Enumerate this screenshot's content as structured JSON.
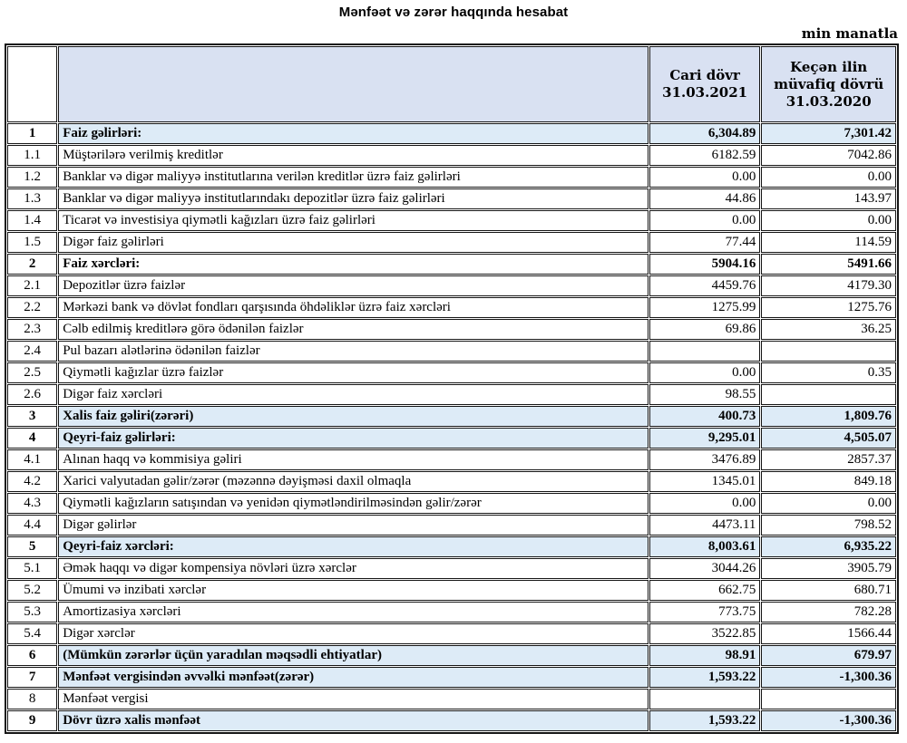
{
  "title": "Mənfəət və zərər haqqında hesabat",
  "unit_note": "min manatla",
  "colors": {
    "header_fill": "#d9e1f2",
    "highlight_fill": "#ddebf7",
    "border": "#161616"
  },
  "table": {
    "header": {
      "num": "",
      "description": "",
      "current": [
        "Cari dövr",
        "31.03.2021"
      ],
      "previous": [
        "Keçən ilin",
        "müvafiq dövrü",
        "31.03.2020"
      ]
    },
    "rows": [
      {
        "num": "1",
        "label": "Faiz gəlirləri:",
        "current": "6,304.89",
        "previous": "7,301.42",
        "highlight": true,
        "bold": true
      },
      {
        "num": "1.1",
        "label": "Müştərilərə verilmiş kreditlər",
        "current": "6182.59",
        "previous": "7042.86",
        "highlight": false,
        "bold": false
      },
      {
        "num": "1.2",
        "label": "Banklar və digər maliyyə institutlarına verilən kreditlər üzrə faiz gəlirləri",
        "current": "0.00",
        "previous": "0.00",
        "highlight": false,
        "bold": false
      },
      {
        "num": "1.3",
        "label": "Banklar və digər maliyyə institutlarındakı depozitlər üzrə faiz gəlirləri",
        "current": "44.86",
        "previous": "143.97",
        "highlight": false,
        "bold": false
      },
      {
        "num": "1.4",
        "label": "Ticarət və investisiya qiymətli kağızları üzrə faiz gəlirləri",
        "current": "0.00",
        "previous": "0.00",
        "highlight": false,
        "bold": false
      },
      {
        "num": "1.5",
        "label": "Digər faiz gəlirləri",
        "current": "77.44",
        "previous": "114.59",
        "highlight": false,
        "bold": false
      },
      {
        "num": "2",
        "label": "Faiz xərcləri:",
        "current": "5904.16",
        "previous": "5491.66",
        "highlight": false,
        "bold": true
      },
      {
        "num": "2.1",
        "label": "Depozitlər üzrə faizlər",
        "current": "4459.76",
        "previous": "4179.30",
        "highlight": false,
        "bold": false
      },
      {
        "num": "2.2",
        "label": "Mərkəzi bank və dövlət fondları qarşısında öhdəliklər üzrə faiz xərcləri",
        "current": "1275.99",
        "previous": "1275.76",
        "highlight": false,
        "bold": false
      },
      {
        "num": "2.3",
        "label": "Cəlb edilmiş kreditlərə görə ödənilən faizlər",
        "current": "69.86",
        "previous": "36.25",
        "highlight": false,
        "bold": false
      },
      {
        "num": "2.4",
        "label": "Pul bazarı alətlərinə ödənilən faizlər",
        "current": "",
        "previous": "",
        "highlight": false,
        "bold": false
      },
      {
        "num": "2.5",
        "label": "Qiymətli kağızlar üzrə faizlər",
        "current": "0.00",
        "previous": "0.35",
        "highlight": false,
        "bold": false
      },
      {
        "num": "2.6",
        "label": "Digər faiz xərcləri",
        "current": "98.55",
        "previous": "",
        "highlight": false,
        "bold": false
      },
      {
        "num": "3",
        "label": "Xalis faiz gəliri(zərəri)",
        "current": "400.73",
        "previous": "1,809.76",
        "highlight": true,
        "bold": true
      },
      {
        "num": "4",
        "label": "Qeyri-faiz gəlirləri:",
        "current": "9,295.01",
        "previous": "4,505.07",
        "highlight": true,
        "bold": true
      },
      {
        "num": "4.1",
        "label": "Alınan haqq və kommisiya gəliri",
        "current": "3476.89",
        "previous": "2857.37",
        "highlight": false,
        "bold": false
      },
      {
        "num": "4.2",
        "label": "Xarici valyutadan gəlir/zərər (məzənnə dəyişməsi daxil olmaqla",
        "current": "1345.01",
        "previous": "849.18",
        "highlight": false,
        "bold": false
      },
      {
        "num": "4.3",
        "label": "Qiymətli kağızların satışından və yenidən qiymətləndirilməsindən gəlir/zərər",
        "current": "0.00",
        "previous": "0.00",
        "highlight": false,
        "bold": false
      },
      {
        "num": "4.4",
        "label": "Digər gəlirlər",
        "current": "4473.11",
        "previous": "798.52",
        "highlight": false,
        "bold": false
      },
      {
        "num": "5",
        "label": "Qeyri-faiz xərcləri:",
        "current": "8,003.61",
        "previous": "6,935.22",
        "highlight": true,
        "bold": true
      },
      {
        "num": "5.1",
        "label": "Əmək haqqı və digər kompensiya növləri üzrə xərclər",
        "current": "3044.26",
        "previous": "3905.79",
        "highlight": false,
        "bold": false
      },
      {
        "num": "5.2",
        "label": "Ümumi və inzibati xərclər",
        "current": "662.75",
        "previous": "680.71",
        "highlight": false,
        "bold": false
      },
      {
        "num": "5.3",
        "label": "Amortizasiya xərcləri",
        "current": "773.75",
        "previous": "782.28",
        "highlight": false,
        "bold": false
      },
      {
        "num": "5.4",
        "label": "Digər xərclər",
        "current": "3522.85",
        "previous": "1566.44",
        "highlight": false,
        "bold": false
      },
      {
        "num": "6",
        "label": "(Mümkün zərərlər üçün yaradılan məqsədli ehtiyatlar)",
        "current": "98.91",
        "previous": "679.97",
        "highlight": true,
        "bold": true
      },
      {
        "num": "7",
        "label": "Mənfəət vergisindən əvvəlki mənfəət(zərər)",
        "current": "1,593.22",
        "previous": "-1,300.36",
        "highlight": true,
        "bold": true
      },
      {
        "num": "8",
        "label": "Mənfəət vergisi",
        "current": "",
        "previous": "",
        "highlight": false,
        "bold": false
      },
      {
        "num": "9",
        "label": "Dövr üzrə xalis mənfəət",
        "current": "1,593.22",
        "previous": "-1,300.36",
        "highlight": true,
        "bold": true
      }
    ]
  }
}
